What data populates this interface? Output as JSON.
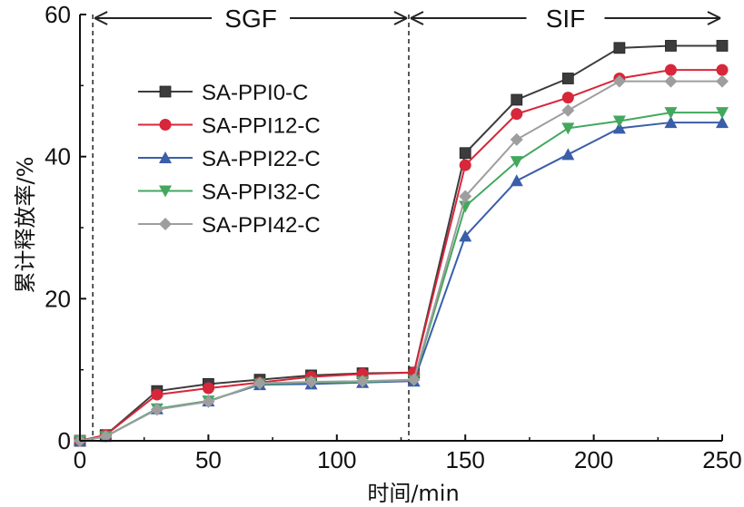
{
  "chart_data": {
    "type": "line",
    "xlabel": "时间/min",
    "ylabel": "累计释放率/%",
    "xlim": [
      0,
      250
    ],
    "ylim": [
      0,
      60
    ],
    "xticks": [
      0,
      50,
      100,
      150,
      200,
      250
    ],
    "yticks": [
      0,
      20,
      40,
      60
    ],
    "grid": false,
    "legend_position": "upper-left",
    "phases": [
      {
        "label": "SGF",
        "start": 5,
        "end": 128
      },
      {
        "label": "SIF",
        "start": 128,
        "end": 250
      }
    ],
    "phase_boundaries": [
      5,
      128
    ],
    "series": [
      {
        "name": "SA-PPI0-C",
        "color": "#3c3c3c",
        "marker": "square",
        "x": [
          0,
          10,
          30,
          50,
          70,
          90,
          110,
          130,
          150,
          170,
          190,
          210,
          230,
          250
        ],
        "y": [
          0,
          0.8,
          7.0,
          8.0,
          8.6,
          9.2,
          9.5,
          9.6,
          40.5,
          48.0,
          51.0,
          55.3,
          55.6,
          55.6
        ]
      },
      {
        "name": "SA-PPI12-C",
        "color": "#d8263a",
        "marker": "circle",
        "x": [
          0,
          10,
          30,
          50,
          70,
          90,
          110,
          130,
          150,
          170,
          190,
          210,
          230,
          250
        ],
        "y": [
          0,
          0.8,
          6.5,
          7.4,
          8.2,
          9.0,
          9.4,
          9.6,
          38.8,
          46.0,
          48.3,
          51.0,
          52.2,
          52.2
        ]
      },
      {
        "name": "SA-PPI22-C",
        "color": "#3a5ea8",
        "marker": "triangle-up",
        "x": [
          0,
          10,
          30,
          50,
          70,
          90,
          110,
          130,
          150,
          170,
          190,
          210,
          230,
          250
        ],
        "y": [
          0,
          0.6,
          4.5,
          5.6,
          7.9,
          8.0,
          8.2,
          8.4,
          28.8,
          36.6,
          40.3,
          44.0,
          44.8,
          44.8
        ]
      },
      {
        "name": "SA-PPI32-C",
        "color": "#43a85e",
        "marker": "triangle-down",
        "x": [
          0,
          10,
          30,
          50,
          70,
          90,
          110,
          130,
          150,
          170,
          190,
          210,
          230,
          250
        ],
        "y": [
          0,
          0.6,
          4.5,
          5.6,
          8.0,
          8.2,
          8.3,
          8.5,
          33.0,
          39.3,
          44.0,
          45.0,
          46.2,
          46.2
        ]
      },
      {
        "name": "SA-PPI42-C",
        "color": "#9e9e9e",
        "marker": "diamond",
        "x": [
          0,
          10,
          30,
          50,
          70,
          90,
          110,
          130,
          150,
          170,
          190,
          210,
          230,
          250
        ],
        "y": [
          0,
          0.6,
          4.4,
          5.5,
          8.1,
          8.3,
          8.4,
          8.6,
          34.4,
          42.4,
          46.5,
          50.6,
          50.6,
          50.6
        ]
      }
    ]
  }
}
